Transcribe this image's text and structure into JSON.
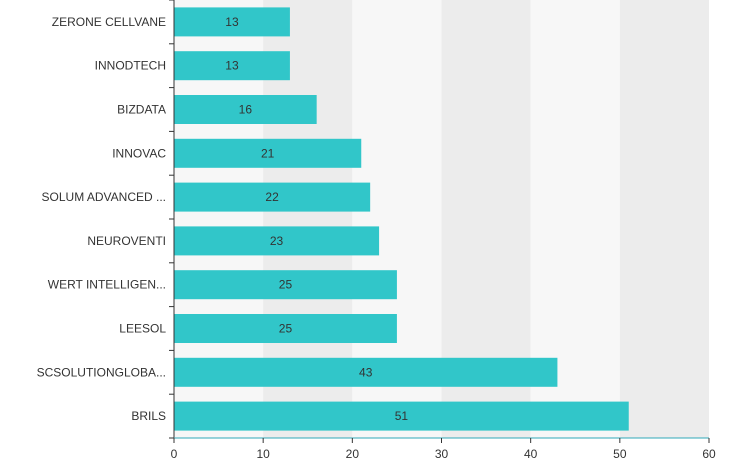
{
  "chart_data": {
    "type": "bar",
    "orientation": "horizontal",
    "categories": [
      "ZERONE CELLVANE",
      "INNODTECH",
      "BIZDATA",
      "INNOVAC",
      "SOLUM ADVANCED ...",
      "NEUROVENTI",
      "WERT INTELLIGEN...",
      "LEESOL",
      "SCSOLUTIONGLOBA...",
      "BRILS"
    ],
    "values": [
      13,
      13,
      16,
      21,
      22,
      23,
      25,
      25,
      43,
      51
    ],
    "data_labels": [
      "13",
      "13",
      "16",
      "21",
      "22",
      "23",
      "25",
      "25",
      "43",
      "51"
    ],
    "xlim": [
      0,
      60
    ],
    "x_ticks": [
      0,
      10,
      20,
      30,
      40,
      50,
      60
    ],
    "x_tick_labels": [
      "0",
      "10",
      "20",
      "30",
      "40",
      "50",
      "60"
    ],
    "grid": "alternating vertical bands",
    "legend": "none",
    "title": "",
    "xlabel": "",
    "ylabel": "",
    "colors": {
      "bar": "#31c6c9",
      "band_light": "#f7f7f7",
      "band_dark": "#ececec",
      "axis": "#31a8b8",
      "text": "#333333"
    }
  }
}
